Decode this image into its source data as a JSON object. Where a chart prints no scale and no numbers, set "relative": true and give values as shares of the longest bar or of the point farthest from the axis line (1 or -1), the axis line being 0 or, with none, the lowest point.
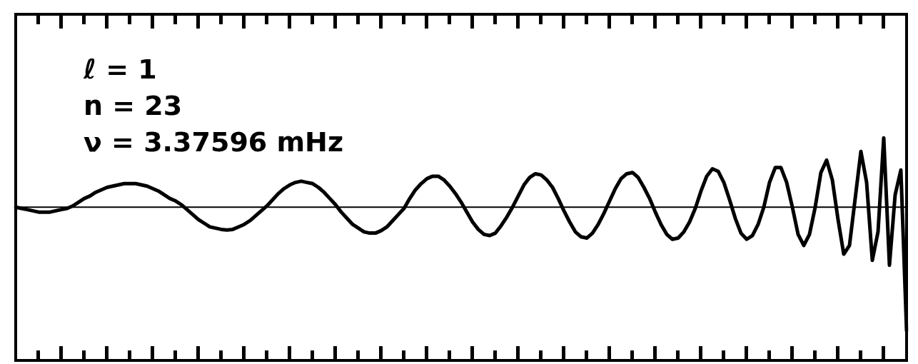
{
  "chart_data": {
    "type": "line",
    "relative": true,
    "categories": [
      null,
      null,
      null,
      null,
      null,
      null,
      null,
      null,
      null,
      null,
      null,
      null,
      null,
      null,
      null,
      null,
      null,
      null,
      null,
      null,
      null,
      null,
      null,
      null,
      null,
      null,
      null,
      null,
      null,
      null,
      null,
      null,
      null,
      null,
      null,
      null,
      null,
      null,
      null,
      null,
      null,
      null,
      null,
      null,
      null,
      null,
      null,
      null,
      null,
      null,
      null,
      null,
      null,
      null,
      null,
      null,
      null,
      null,
      null,
      null,
      null,
      null,
      null,
      null,
      null,
      null,
      null,
      null,
      null,
      null,
      null,
      null,
      null,
      null,
      null,
      null,
      null,
      null,
      null,
      null,
      null,
      null,
      null,
      null,
      null,
      null,
      null,
      null,
      null,
      null,
      null,
      null,
      null,
      null,
      null,
      null,
      null,
      null,
      null,
      null,
      null,
      null,
      null,
      null,
      null,
      null,
      null,
      null,
      null,
      null,
      null,
      null,
      null,
      null,
      null,
      null,
      null,
      null,
      null,
      null,
      null,
      null,
      null,
      null,
      null,
      null,
      null,
      null,
      null,
      null,
      null,
      null,
      null,
      null,
      null,
      null,
      null,
      null,
      null,
      null,
      null,
      null,
      null,
      null,
      null,
      null,
      null,
      null,
      null,
      null,
      null,
      null,
      null,
      null,
      null,
      null,
      null
    ],
    "series": [
      {
        "color": "#000000",
        "values": [
          0,
          -0.01,
          -0.02,
          -0.03,
          -0.04,
          -0.04,
          -0.04,
          -0.03,
          -0.02,
          -0.01,
          0.01,
          0.04,
          0.07,
          0.09,
          0.12,
          0.14,
          0.16,
          0.17,
          0.18,
          0.19,
          0.19,
          0.19,
          0.18,
          0.17,
          0.15,
          0.13,
          0.1,
          0.07,
          0.05,
          0.02,
          -0.02,
          -0.06,
          -0.1,
          -0.13,
          -0.16,
          -0.17,
          -0.18,
          -0.185,
          -0.18,
          -0.16,
          -0.14,
          -0.11,
          -0.07,
          -0.03,
          0.01,
          0.06,
          0.11,
          0.15,
          0.18,
          0.2,
          0.21,
          0.2,
          0.19,
          0.16,
          0.12,
          0.07,
          0.02,
          -0.04,
          -0.09,
          -0.14,
          -0.17,
          -0.2,
          -0.21,
          -0.21,
          -0.19,
          -0.16,
          -0.11,
          -0.06,
          -0.01,
          0.07,
          0.14,
          0.19,
          0.23,
          0.25,
          0.25,
          0.22,
          0.17,
          0.11,
          0.04,
          -0.04,
          -0.12,
          -0.18,
          -0.22,
          -0.23,
          -0.21,
          -0.15,
          -0.08,
          0,
          0.09,
          0.18,
          0.24,
          0.27,
          0.26,
          0.22,
          0.16,
          0.07,
          -0.03,
          -0.12,
          -0.2,
          -0.24,
          -0.25,
          -0.21,
          -0.14,
          -0.05,
          0.05,
          0.15,
          0.23,
          0.27,
          0.28,
          0.24,
          0.16,
          0.07,
          -0.04,
          -0.14,
          -0.22,
          -0.26,
          -0.25,
          -0.2,
          -0.12,
          -0.01,
          0.13,
          0.25,
          0.31,
          0.29,
          0.2,
          0.06,
          -0.09,
          -0.21,
          -0.26,
          -0.23,
          -0.14,
          0,
          0.2,
          0.32,
          0.32,
          0.2,
          0,
          -0.22,
          -0.31,
          -0.22,
          0,
          0.28,
          0.38,
          0.22,
          -0.1,
          -0.38,
          -0.31,
          0.07,
          0.45,
          0.2,
          -0.43,
          -0.2,
          0.56,
          -0.47,
          0.1,
          0.3,
          -1
        ]
      }
    ],
    "ref_lines": [
      {
        "axis": "y",
        "value": 0,
        "color": "#000000"
      }
    ],
    "annotations": [
      "ℓ = 1",
      "n = 23",
      "ν = 3.37596 mHz"
    ]
  }
}
